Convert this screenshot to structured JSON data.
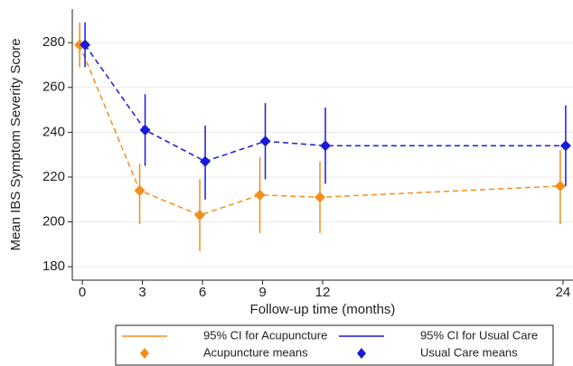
{
  "chart_data": {
    "type": "line",
    "x_label": "Follow-up time (months)",
    "y_label": "Mean IBS Symptom Severity Score",
    "x": [
      0,
      3,
      6,
      9,
      12,
      24
    ],
    "xlim": [
      -0.5,
      24.5
    ],
    "xticks": [
      0,
      3,
      6,
      9,
      12,
      24
    ],
    "ylim": [
      174,
      295
    ],
    "yticks": [
      180,
      200,
      220,
      240,
      260,
      280
    ],
    "grid": true,
    "legend": "bottom",
    "series": [
      {
        "name": "Acupuncture means",
        "ci_name": "95% CI for Acupuncture",
        "color": "#f28e1c",
        "values": [
          279,
          214,
          203,
          212,
          211,
          216
        ],
        "ci_low": [
          269,
          199,
          187,
          195,
          195,
          199
        ],
        "ci_high": [
          289,
          226,
          219,
          229,
          227,
          232
        ]
      },
      {
        "name": "Usual Care means",
        "ci_name": "95% CI for Usual Care",
        "color": "#1a1adb",
        "values": [
          279,
          241,
          227,
          236,
          234,
          234
        ],
        "ci_low": [
          269,
          225,
          210,
          219,
          217,
          216
        ],
        "ci_high": [
          289,
          257,
          243,
          253,
          251,
          252
        ]
      }
    ]
  }
}
